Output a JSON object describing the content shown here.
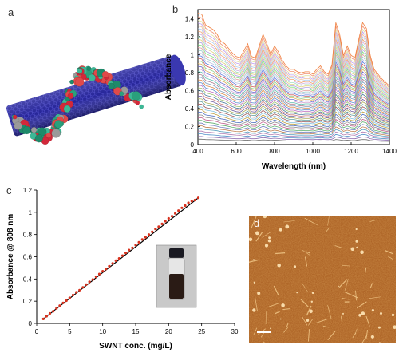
{
  "panels": {
    "a": {
      "label": "a"
    },
    "b": {
      "label": "b"
    },
    "c": {
      "label": "c"
    },
    "d": {
      "label": "d"
    }
  },
  "colors": {
    "nanotube": "#27269a",
    "fit_line": "#000000",
    "points": "#d8321e",
    "afm_bg": "#a65a1e"
  },
  "chart_data": [
    {
      "panel": "b",
      "type": "line",
      "xlabel": "Wavelength (nm)",
      "ylabel": "Absorbance",
      "xlim": [
        400,
        1400
      ],
      "ylim": [
        0,
        1.5
      ],
      "xticks": [
        400,
        600,
        800,
        1000,
        1200,
        1400
      ],
      "yticks": [
        0,
        0.2,
        0.4,
        0.6,
        0.8,
        1.0,
        1.2,
        1.4
      ],
      "xtick_labels": [
        "400",
        "600",
        "800",
        "1000",
        "1200",
        "1400"
      ],
      "ytick_labels": [
        "0",
        "0.2",
        "0.4",
        "0.6",
        "0.8",
        "1",
        "1.2",
        "1.4"
      ],
      "profile": {
        "x": [
          400,
          420,
          440,
          460,
          480,
          500,
          520,
          540,
          560,
          580,
          600,
          620,
          640,
          660,
          680,
          700,
          720,
          740,
          760,
          780,
          800,
          820,
          840,
          860,
          880,
          900,
          920,
          940,
          960,
          980,
          1000,
          1020,
          1040,
          1060,
          1080,
          1100,
          1120,
          1140,
          1160,
          1180,
          1200,
          1220,
          1240,
          1260,
          1280,
          1300,
          1320,
          1340,
          1360,
          1380,
          1400
        ],
        "y": [
          1.0,
          0.99,
          0.9,
          0.88,
          0.86,
          0.82,
          0.76,
          0.74,
          0.7,
          0.66,
          0.63,
          0.62,
          0.68,
          0.74,
          0.63,
          0.62,
          0.72,
          0.82,
          0.74,
          0.65,
          0.72,
          0.67,
          0.6,
          0.55,
          0.52,
          0.52,
          0.5,
          0.49,
          0.5,
          0.5,
          0.48,
          0.52,
          0.55,
          0.5,
          0.48,
          0.56,
          0.92,
          0.82,
          0.64,
          0.72,
          0.64,
          0.62,
          0.78,
          0.92,
          0.87,
          0.64,
          0.52,
          0.48,
          0.44,
          0.41,
          0.38
        ]
      },
      "series_peak_absorbance": [
        0.06,
        0.09,
        0.12,
        0.15,
        0.18,
        0.21,
        0.24,
        0.27,
        0.3,
        0.33,
        0.36,
        0.39,
        0.42,
        0.45,
        0.48,
        0.51,
        0.54,
        0.57,
        0.6,
        0.63,
        0.66,
        0.69,
        0.72,
        0.75,
        0.78,
        0.81,
        0.84,
        0.87,
        0.9,
        0.93,
        0.96,
        0.99,
        1.02,
        1.05,
        1.08,
        1.11,
        1.14,
        1.17,
        1.2,
        1.23,
        1.26,
        1.29,
        1.32,
        1.35,
        1.38,
        1.42,
        1.46
      ],
      "series_colors": [
        "#6b6b6b",
        "#8b6bb0",
        "#4f8fc8",
        "#b07ab0",
        "#5aa0c0",
        "#c08050",
        "#7080c0",
        "#60b070",
        "#c06090",
        "#909090",
        "#4d6fbf",
        "#c0a040",
        "#80c0e0",
        "#a06060",
        "#60a0a0",
        "#b0b060",
        "#7060a0",
        "#d08080",
        "#5080a0",
        "#a0c070",
        "#c070c0",
        "#6090d0",
        "#e09050",
        "#80a0c0",
        "#b08090",
        "#60c0b0",
        "#d0a0d0",
        "#7070d0",
        "#e0b060",
        "#90d090",
        "#d06060",
        "#6080e0",
        "#c0c0e0",
        "#a0d0d0",
        "#e0a0a0",
        "#80e080",
        "#b0a0e0",
        "#e0d080",
        "#a0e0c0",
        "#d0b0e0",
        "#f0a070",
        "#b0d0f0",
        "#f0c0a0",
        "#c0a0f0",
        "#e0e0a0",
        "#f09070",
        "#f08040"
      ]
    },
    {
      "panel": "c",
      "type": "scatter",
      "xlabel": "SWNT conc. (mg/L)",
      "ylabel": "Absorbance @ 808 nm",
      "xlim": [
        0,
        30
      ],
      "ylim": [
        0,
        1.2
      ],
      "xticks": [
        0,
        5,
        10,
        15,
        20,
        25,
        30
      ],
      "yticks": [
        0,
        0.2,
        0.4,
        0.6,
        0.8,
        1.0,
        1.2
      ],
      "xtick_labels": [
        "0",
        "5",
        "10",
        "15",
        "20",
        "25",
        "30"
      ],
      "ytick_labels": [
        "0",
        "0.2",
        "0.4",
        "0.6",
        "0.8",
        "1",
        "1.2"
      ],
      "points": {
        "x": [
          1.0,
          1.5,
          2.0,
          2.5,
          3.0,
          3.5,
          4.0,
          4.5,
          5.0,
          5.5,
          6.0,
          6.5,
          7.0,
          7.5,
          8.0,
          8.5,
          9.0,
          9.5,
          10.0,
          10.5,
          11.0,
          11.5,
          12.0,
          12.5,
          13.0,
          13.5,
          14.0,
          14.5,
          15.0,
          15.5,
          16.0,
          16.5,
          17.0,
          17.5,
          18.0,
          18.5,
          19.0,
          19.5,
          20.0,
          20.5,
          21.0,
          21.5,
          22.0,
          22.5,
          23.0,
          23.5,
          24.0,
          24.5
        ],
        "y": [
          0.04,
          0.065,
          0.09,
          0.11,
          0.135,
          0.16,
          0.185,
          0.205,
          0.23,
          0.255,
          0.28,
          0.3,
          0.325,
          0.35,
          0.375,
          0.395,
          0.42,
          0.445,
          0.47,
          0.49,
          0.515,
          0.54,
          0.565,
          0.585,
          0.61,
          0.635,
          0.66,
          0.68,
          0.705,
          0.73,
          0.755,
          0.775,
          0.8,
          0.825,
          0.85,
          0.87,
          0.895,
          0.92,
          0.945,
          0.965,
          0.99,
          1.015,
          1.04,
          1.06,
          1.085,
          1.1,
          1.11,
          1.13
        ]
      },
      "fit": {
        "x": [
          1.0,
          24.5
        ],
        "y": [
          0.04,
          1.13
        ]
      }
    }
  ]
}
